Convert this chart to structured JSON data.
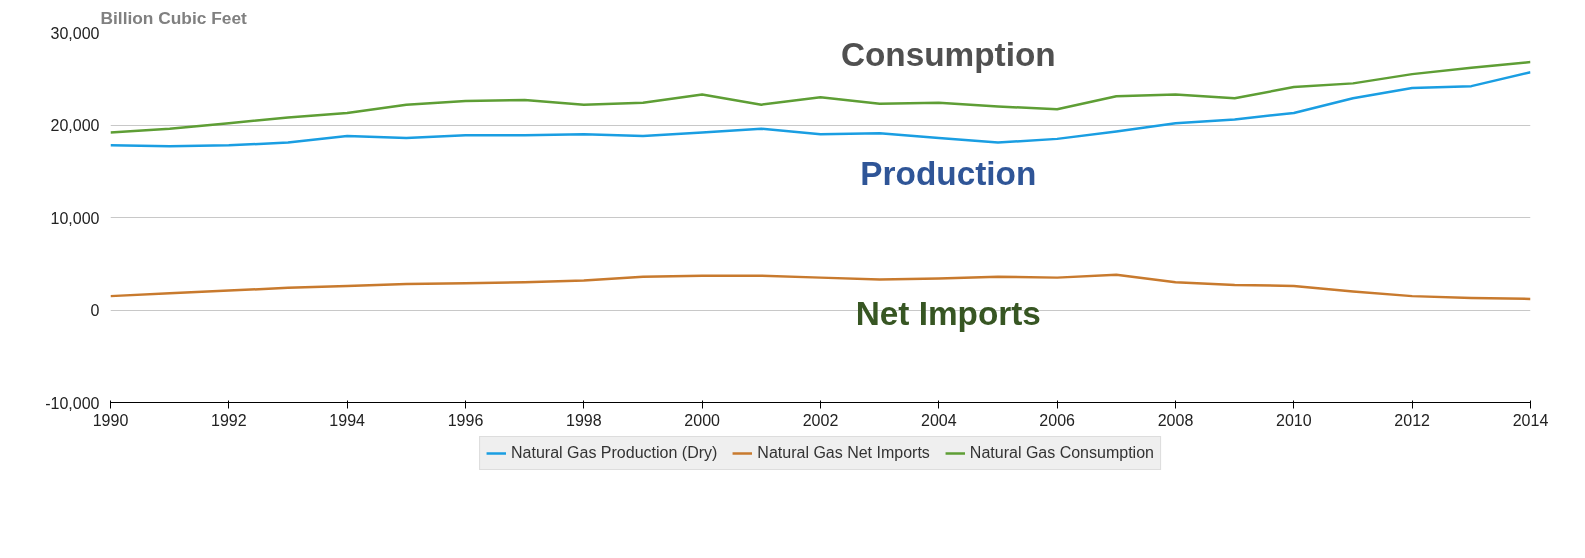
{
  "chart_data": {
    "type": "line",
    "ylabel": "Billion Cubic Feet",
    "x": [
      1990,
      1991,
      1992,
      1993,
      1994,
      1995,
      1996,
      1997,
      1998,
      1999,
      2000,
      2001,
      2002,
      2003,
      2004,
      2005,
      2006,
      2007,
      2008,
      2009,
      2010,
      2011,
      2012,
      2013,
      2014
    ],
    "series": [
      {
        "name": "Natural Gas Production (Dry)",
        "color": "#1a9ee2",
        "values": [
          17800,
          17700,
          17800,
          18100,
          18800,
          18600,
          18900,
          18900,
          19000,
          18800,
          19200,
          19600,
          19000,
          19100,
          18600,
          18100,
          18500,
          19300,
          20200,
          20600,
          21300,
          22900,
          24000,
          24200,
          25700
        ]
      },
      {
        "name": "Natural Gas Net Imports",
        "color": "#c87a2e",
        "values": [
          1500,
          1800,
          2100,
          2400,
          2600,
          2800,
          2900,
          3000,
          3200,
          3600,
          3700,
          3700,
          3500,
          3300,
          3400,
          3600,
          3500,
          3800,
          3000,
          2700,
          2600,
          2000,
          1500,
          1300,
          1200
        ]
      },
      {
        "name": "Natural Gas Consumption",
        "color": "#5e9e35",
        "values": [
          19200,
          19600,
          20200,
          20800,
          21300,
          22200,
          22600,
          22700,
          22200,
          22400,
          23300,
          22200,
          23000,
          22300,
          22400,
          22000,
          21700,
          23100,
          23300,
          22900,
          24100,
          24500,
          25500,
          26200,
          26800
        ]
      }
    ],
    "annotations": [
      "Consumption",
      "Production",
      "Net Imports"
    ],
    "xlim": [
      1990,
      2014
    ],
    "xticks": [
      1990,
      1992,
      1994,
      1996,
      1998,
      2000,
      2002,
      2004,
      2006,
      2008,
      2010,
      2012,
      2014
    ],
    "ylim": [
      -10000,
      30000
    ],
    "yticks": [
      {
        "value": -10000,
        "label": "-10,000"
      },
      0,
      {
        "value": 10000,
        "label": "10,000"
      },
      {
        "value": 20000,
        "label": "20,000"
      },
      {
        "value": 30000,
        "label": "30,000"
      }
    ],
    "grid": "y",
    "legend": "bottom",
    "marker": "none",
    "line_style": "solid"
  }
}
